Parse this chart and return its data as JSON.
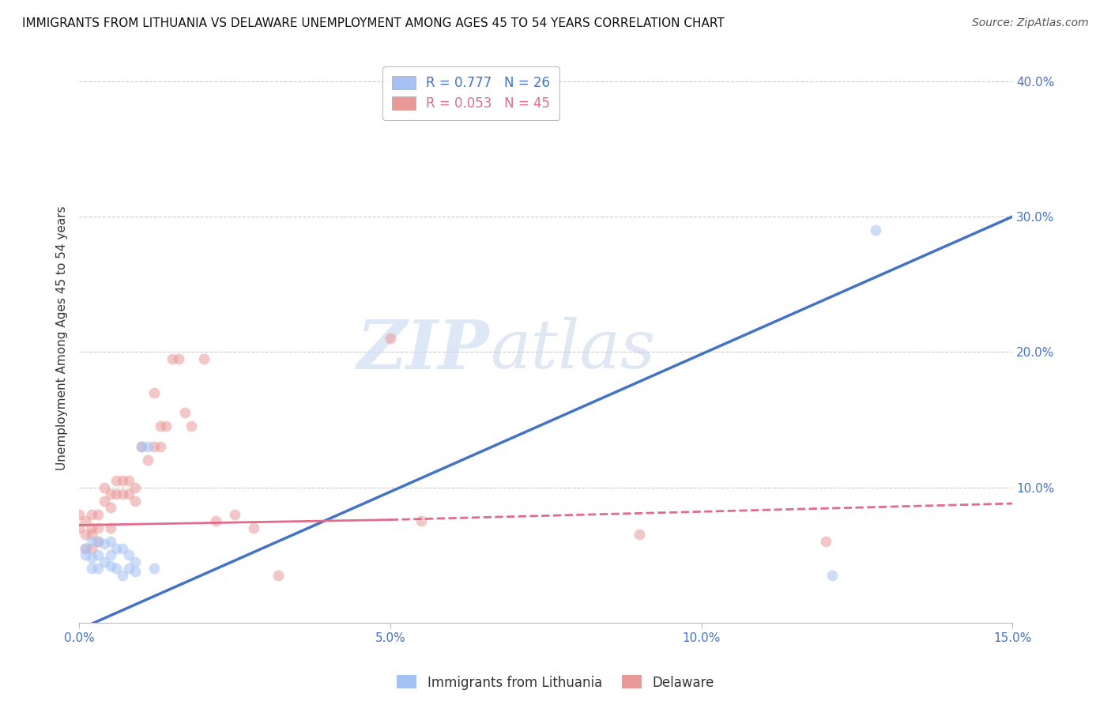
{
  "title": "IMMIGRANTS FROM LITHUANIA VS DELAWARE UNEMPLOYMENT AMONG AGES 45 TO 54 YEARS CORRELATION CHART",
  "source": "Source: ZipAtlas.com",
  "ylabel": "Unemployment Among Ages 45 to 54 years",
  "xlim": [
    0.0,
    0.15
  ],
  "ylim": [
    0.0,
    0.42
  ],
  "yticks": [
    0.1,
    0.2,
    0.3,
    0.4
  ],
  "ytick_labels": [
    "10.0%",
    "20.0%",
    "30.0%",
    "40.0%"
  ],
  "xticks": [
    0.0,
    0.05,
    0.1,
    0.15
  ],
  "xtick_labels": [
    "0.0%",
    "5.0%",
    "10.0%",
    "15.0%"
  ],
  "legend1_label": "R = 0.777   N = 26",
  "legend2_label": "R = 0.053   N = 45",
  "legend1_color": "#a4c2f4",
  "legend2_color": "#ea9999",
  "blue_scatter_x": [
    0.001,
    0.001,
    0.002,
    0.002,
    0.002,
    0.003,
    0.003,
    0.003,
    0.004,
    0.004,
    0.005,
    0.005,
    0.005,
    0.006,
    0.006,
    0.007,
    0.007,
    0.008,
    0.008,
    0.009,
    0.009,
    0.01,
    0.011,
    0.012,
    0.121,
    0.128
  ],
  "blue_scatter_y": [
    0.055,
    0.05,
    0.06,
    0.048,
    0.04,
    0.06,
    0.05,
    0.04,
    0.058,
    0.045,
    0.06,
    0.05,
    0.042,
    0.055,
    0.04,
    0.055,
    0.035,
    0.05,
    0.04,
    0.045,
    0.038,
    0.13,
    0.13,
    0.04,
    0.035,
    0.29
  ],
  "pink_scatter_x": [
    0.0,
    0.0,
    0.001,
    0.001,
    0.001,
    0.002,
    0.002,
    0.002,
    0.002,
    0.003,
    0.003,
    0.003,
    0.004,
    0.004,
    0.005,
    0.005,
    0.005,
    0.006,
    0.006,
    0.007,
    0.007,
    0.008,
    0.008,
    0.009,
    0.009,
    0.01,
    0.011,
    0.012,
    0.012,
    0.013,
    0.013,
    0.014,
    0.015,
    0.016,
    0.017,
    0.018,
    0.02,
    0.022,
    0.025,
    0.028,
    0.032,
    0.05,
    0.055,
    0.09,
    0.12
  ],
  "pink_scatter_y": [
    0.08,
    0.07,
    0.075,
    0.065,
    0.055,
    0.08,
    0.07,
    0.065,
    0.055,
    0.08,
    0.07,
    0.06,
    0.1,
    0.09,
    0.095,
    0.085,
    0.07,
    0.105,
    0.095,
    0.105,
    0.095,
    0.105,
    0.095,
    0.1,
    0.09,
    0.13,
    0.12,
    0.13,
    0.17,
    0.145,
    0.13,
    0.145,
    0.195,
    0.195,
    0.155,
    0.145,
    0.195,
    0.075,
    0.08,
    0.07,
    0.035,
    0.21,
    0.075,
    0.065,
    0.06
  ],
  "blue_line_x": [
    0.0,
    0.15
  ],
  "blue_line_y": [
    -0.005,
    0.3
  ],
  "pink_line_x": [
    0.0,
    0.15
  ],
  "pink_line_y": [
    0.072,
    0.087
  ],
  "pink_line2_x": [
    0.03,
    0.15
  ],
  "pink_line2_y": [
    0.076,
    0.088
  ],
  "watermark_zip": "ZIP",
  "watermark_atlas": "atlas",
  "bg_color": "#ffffff",
  "scatter_size": 100,
  "scatter_alpha": 0.55,
  "line_color_blue": "#4472c4",
  "line_color_pink": "#e06c8a",
  "title_fontsize": 11,
  "axis_label_fontsize": 11,
  "tick_fontsize": 11,
  "source_fontsize": 10
}
